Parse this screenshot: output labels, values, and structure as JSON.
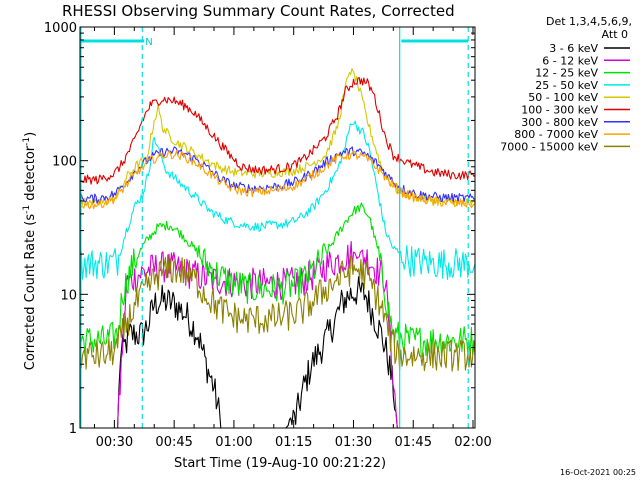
{
  "chart_data": {
    "type": "line",
    "title": "RHESSI Observing Summary Count Rates, Corrected",
    "xlabel": "Start Time (19-Aug-10 00:21:22)",
    "ylabel_main": "Corrected Count Rate (s",
    "ylabel_sup1": "-1",
    "ylabel_mid": " detector",
    "ylabel_sup2": "-1",
    "ylabel_end": ")",
    "yscale": "log",
    "ylim": [
      1,
      1000
    ],
    "xlim_minutes": [
      21.37,
      120.5
    ],
    "x_ticks": [
      {
        "label": "00:30",
        "m": 30
      },
      {
        "label": "00:45",
        "m": 45
      },
      {
        "label": "01:00",
        "m": 60
      },
      {
        "label": "01:15",
        "m": 75
      },
      {
        "label": "01:30",
        "m": 90
      },
      {
        "label": "01:45",
        "m": 105
      },
      {
        "label": "02:00",
        "m": 120
      }
    ],
    "y_ticks": [
      {
        "label": "1",
        "v": 1
      },
      {
        "label": "10",
        "v": 10
      },
      {
        "label": "100",
        "v": 100
      },
      {
        "label": "1000",
        "v": 1000
      }
    ],
    "legend_header": [
      "Det 1,3,4,5,6,9,",
      "Att 0"
    ],
    "series": [
      {
        "name": "3 - 6 keV",
        "color": "#000000",
        "points": [
          [
            21.4,
            1
          ],
          [
            30.8,
            1
          ],
          [
            31.5,
            3.5
          ],
          [
            34,
            5
          ],
          [
            37,
            5
          ],
          [
            38.5,
            6
          ],
          [
            40,
            8.5
          ],
          [
            42,
            9
          ],
          [
            45,
            8.5
          ],
          [
            48,
            7
          ],
          [
            51,
            5
          ],
          [
            53,
            3
          ],
          [
            55,
            2
          ],
          [
            57,
            1
          ],
          [
            60,
            1
          ],
          [
            63,
            1
          ],
          [
            66,
            1
          ],
          [
            70,
            1
          ],
          [
            73,
            1
          ],
          [
            75.5,
            1.2
          ],
          [
            77.5,
            2
          ],
          [
            79.5,
            3
          ],
          [
            82,
            4
          ],
          [
            85,
            6
          ],
          [
            87,
            8.5
          ],
          [
            89,
            10
          ],
          [
            91,
            10.5
          ],
          [
            93,
            10
          ],
          [
            95,
            7
          ],
          [
            97,
            5
          ],
          [
            98.5,
            3.5
          ],
          [
            100,
            2
          ],
          [
            101,
            1
          ],
          [
            120.5,
            1
          ]
        ]
      },
      {
        "name": "6 - 12 keV",
        "color": "#d400d4",
        "points": [
          [
            21.4,
            1
          ],
          [
            30.8,
            1
          ],
          [
            33,
            12
          ],
          [
            36,
            14
          ],
          [
            38,
            15
          ],
          [
            41,
            16
          ],
          [
            44,
            16
          ],
          [
            47,
            15
          ],
          [
            50,
            14
          ],
          [
            54,
            13
          ],
          [
            58,
            12.5
          ],
          [
            63,
            12
          ],
          [
            68,
            12
          ],
          [
            73,
            12
          ],
          [
            77,
            12.5
          ],
          [
            80,
            14
          ],
          [
            84,
            17
          ],
          [
            88,
            19
          ],
          [
            90,
            20
          ],
          [
            92,
            20
          ],
          [
            94,
            18
          ],
          [
            96,
            15
          ],
          [
            98,
            13
          ],
          [
            101,
            1
          ],
          [
            120.5,
            1
          ]
        ]
      },
      {
        "name": "12 - 25 keV",
        "color": "#00e000",
        "points": [
          [
            21.4,
            4.5
          ],
          [
            28,
            4.5
          ],
          [
            30.8,
            5
          ],
          [
            32,
            10
          ],
          [
            34,
            15
          ],
          [
            36,
            20
          ],
          [
            38,
            25
          ],
          [
            41,
            32
          ],
          [
            44,
            33
          ],
          [
            47,
            28
          ],
          [
            50,
            22
          ],
          [
            53,
            17
          ],
          [
            56,
            14
          ],
          [
            60,
            12
          ],
          [
            64,
            11
          ],
          [
            68,
            11
          ],
          [
            72,
            11
          ],
          [
            76,
            12
          ],
          [
            79,
            14
          ],
          [
            82,
            18
          ],
          [
            85,
            25
          ],
          [
            88,
            35
          ],
          [
            90,
            42
          ],
          [
            92,
            45
          ],
          [
            94,
            38
          ],
          [
            96,
            22
          ],
          [
            98,
            10
          ],
          [
            100,
            5
          ],
          [
            104,
            4.5
          ],
          [
            120.5,
            4.5
          ]
        ]
      },
      {
        "name": "25 - 50 keV",
        "color": "#00e8e8",
        "points": [
          [
            21.4,
            17
          ],
          [
            28,
            17
          ],
          [
            30.8,
            18
          ],
          [
            33,
            30
          ],
          [
            35,
            45
          ],
          [
            37,
            55
          ],
          [
            38.5,
            80
          ],
          [
            40,
            150
          ],
          [
            41.5,
            110
          ],
          [
            43,
            85
          ],
          [
            46,
            70
          ],
          [
            50,
            55
          ],
          [
            54,
            42
          ],
          [
            58,
            36
          ],
          [
            62,
            33
          ],
          [
            66,
            32
          ],
          [
            70,
            33
          ],
          [
            74,
            34
          ],
          [
            77,
            38
          ],
          [
            80,
            45
          ],
          [
            83,
            60
          ],
          [
            86,
            85
          ],
          [
            88,
            130
          ],
          [
            89.5,
            200
          ],
          [
            91,
            180
          ],
          [
            92.5,
            160
          ],
          [
            94,
            120
          ],
          [
            96,
            60
          ],
          [
            98,
            30
          ],
          [
            100,
            22
          ],
          [
            104,
            18
          ],
          [
            110,
            17
          ],
          [
            120.5,
            17
          ]
        ]
      },
      {
        "name": "50 - 100 keV",
        "color": "#d4c800",
        "points": [
          [
            21.4,
            48
          ],
          [
            28,
            50
          ],
          [
            30.8,
            55
          ],
          [
            33,
            75
          ],
          [
            36,
            95
          ],
          [
            38,
            100
          ],
          [
            40,
            200
          ],
          [
            41,
            250
          ],
          [
            42,
            180
          ],
          [
            44,
            150
          ],
          [
            46,
            135
          ],
          [
            48,
            125
          ],
          [
            52,
            105
          ],
          [
            56,
            90
          ],
          [
            60,
            82
          ],
          [
            65,
            80
          ],
          [
            70,
            81
          ],
          [
            75,
            84
          ],
          [
            79,
            92
          ],
          [
            83,
            110
          ],
          [
            86,
            180
          ],
          [
            88,
            350
          ],
          [
            89,
            480
          ],
          [
            90.5,
            420
          ],
          [
            92,
            300
          ],
          [
            93.5,
            200
          ],
          [
            95,
            140
          ],
          [
            97,
            90
          ],
          [
            99,
            70
          ],
          [
            101,
            60
          ],
          [
            104,
            55
          ],
          [
            110,
            50
          ],
          [
            120.5,
            48
          ]
        ]
      },
      {
        "name": "100 - 300 keV",
        "color": "#e00000",
        "points": [
          [
            21.4,
            72
          ],
          [
            26,
            72
          ],
          [
            30,
            80
          ],
          [
            32,
            95
          ],
          [
            35,
            140
          ],
          [
            37,
            200
          ],
          [
            39,
            260
          ],
          [
            42,
            290
          ],
          [
            45,
            280
          ],
          [
            48,
            255
          ],
          [
            50,
            230
          ],
          [
            53,
            180
          ],
          [
            56,
            140
          ],
          [
            59,
            110
          ],
          [
            62,
            90
          ],
          [
            66,
            85
          ],
          [
            70,
            86
          ],
          [
            74,
            90
          ],
          [
            77,
            100
          ],
          [
            80,
            120
          ],
          [
            83,
            150
          ],
          [
            86,
            220
          ],
          [
            88,
            330
          ],
          [
            90,
            390
          ],
          [
            92,
            400
          ],
          [
            93.5,
            380
          ],
          [
            95,
            320
          ],
          [
            96.5,
            220
          ],
          [
            98,
            150
          ],
          [
            100,
            110
          ],
          [
            104,
            95
          ],
          [
            110,
            82
          ],
          [
            115,
            78
          ],
          [
            120.5,
            78
          ]
        ]
      },
      {
        "name": "300 - 800 keV",
        "color": "#3030ff",
        "points": [
          [
            21.4,
            52
          ],
          [
            26,
            52
          ],
          [
            30,
            56
          ],
          [
            33,
            70
          ],
          [
            36,
            88
          ],
          [
            39,
            105
          ],
          [
            42,
            116
          ],
          [
            45,
            118
          ],
          [
            48,
            112
          ],
          [
            51,
            100
          ],
          [
            54,
            85
          ],
          [
            57,
            72
          ],
          [
            60,
            65
          ],
          [
            64,
            62
          ],
          [
            68,
            63
          ],
          [
            72,
            65
          ],
          [
            75,
            69
          ],
          [
            78,
            76
          ],
          [
            81,
            87
          ],
          [
            84,
            102
          ],
          [
            87,
            115
          ],
          [
            90,
            118
          ],
          [
            93,
            112
          ],
          [
            96,
            95
          ],
          [
            99,
            75
          ],
          [
            102,
            62
          ],
          [
            106,
            56
          ],
          [
            112,
            53
          ],
          [
            120.5,
            52
          ]
        ]
      },
      {
        "name": "800 - 7000 keV",
        "color": "#ffa000",
        "points": [
          [
            21.4,
            47
          ],
          [
            26,
            47
          ],
          [
            30,
            52
          ],
          [
            33,
            66
          ],
          [
            36,
            84
          ],
          [
            39,
            100
          ],
          [
            42,
            110
          ],
          [
            45,
            112
          ],
          [
            48,
            106
          ],
          [
            51,
            94
          ],
          [
            54,
            80
          ],
          [
            57,
            68
          ],
          [
            60,
            61
          ],
          [
            64,
            58
          ],
          [
            68,
            59
          ],
          [
            72,
            61
          ],
          [
            75,
            65
          ],
          [
            78,
            72
          ],
          [
            81,
            82
          ],
          [
            84,
            96
          ],
          [
            87,
            108
          ],
          [
            90,
            111
          ],
          [
            93,
            105
          ],
          [
            96,
            88
          ],
          [
            99,
            70
          ],
          [
            102,
            58
          ],
          [
            106,
            52
          ],
          [
            112,
            49
          ],
          [
            120.5,
            47
          ]
        ]
      },
      {
        "name": "7000 - 15000 keV",
        "color": "#8b8000",
        "points": [
          [
            21.4,
            3.5
          ],
          [
            28,
            3.5
          ],
          [
            30.8,
            4
          ],
          [
            33,
            6
          ],
          [
            35,
            8
          ],
          [
            38,
            11
          ],
          [
            41,
            14
          ],
          [
            44,
            15.5
          ],
          [
            47,
            15
          ],
          [
            50,
            13
          ],
          [
            53,
            10
          ],
          [
            56,
            8
          ],
          [
            59,
            7
          ],
          [
            62,
            6.5
          ],
          [
            66,
            6.5
          ],
          [
            70,
            6.5
          ],
          [
            74,
            7
          ],
          [
            77,
            7.5
          ],
          [
            80,
            9
          ],
          [
            83,
            11
          ],
          [
            86,
            13
          ],
          [
            89,
            15
          ],
          [
            91,
            15.5
          ],
          [
            93,
            14
          ],
          [
            95,
            11
          ],
          [
            97,
            8
          ],
          [
            99,
            5
          ],
          [
            101,
            3.5
          ],
          [
            106,
            3.5
          ],
          [
            120.5,
            3.5
          ]
        ]
      }
    ],
    "annotations": {
      "flag_label": "N",
      "flag_bars": [
        [
          21.4,
          37.5
        ],
        [
          102.0,
          118.8
        ]
      ],
      "cyan_solid_lines": [
        21.6,
        101.6
      ],
      "cyan_dashed_lines": [
        37.0,
        118.8
      ]
    },
    "footer_date": "16-Oct-2021 00:25"
  }
}
